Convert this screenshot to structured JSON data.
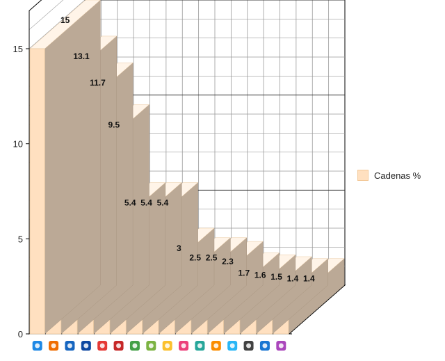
{
  "chart_data": {
    "type": "bar",
    "style": "3d",
    "categories": [
      "Antena 3 icon",
      "Cuatro icon",
      "La 1 icon",
      "Telecinco icon",
      "Tele Madrid icon",
      "Castilla-La Mancha TV icon",
      "La Sexta icon",
      "Canal Sur icon",
      "Neox icon",
      "Nova icon",
      "La 2 icon",
      "Teledeporte icon",
      "Clan icon",
      "Intereconomia icon",
      "TV3 icon",
      "Antena 3 HD icon"
    ],
    "series": [
      {
        "name": "Cadenas %",
        "values": [
          15,
          13.1,
          11.7,
          9.5,
          5.4,
          5.4,
          5.4,
          3,
          2.5,
          2.5,
          2.3,
          1.7,
          1.6,
          1.5,
          1.4,
          1.4
        ]
      }
    ],
    "yticks": [
      "0",
      "5",
      "10",
      "15"
    ],
    "ylim": [
      0,
      17
    ],
    "grid": true,
    "legend_position": "right",
    "colors": {
      "bar_front": "#ffe0c0",
      "bar_top": "#fff4e8",
      "bar_side": "#bba996",
      "bar_outline": "#e9c9a2",
      "grid": "#999999",
      "grid_major": "#333333",
      "axis": "#000000"
    }
  }
}
